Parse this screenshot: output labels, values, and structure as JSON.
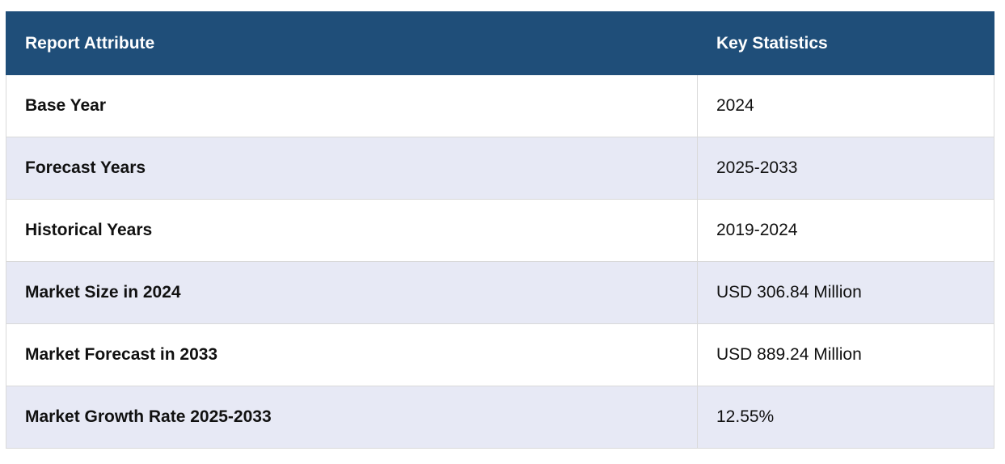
{
  "table": {
    "headers": [
      "Report Attribute",
      "Key Statistics"
    ],
    "rows": [
      {
        "attribute": "Base Year",
        "value": "2024"
      },
      {
        "attribute": "Forecast Years",
        "value": "2025-2033"
      },
      {
        "attribute": "Historical Years",
        "value": "2019-2024"
      },
      {
        "attribute": "Market Size in 2024",
        "value": "USD 306.84 Million"
      },
      {
        "attribute": "Market Forecast in 2033",
        "value": "USD 889.24 Million"
      },
      {
        "attribute": "Market Growth Rate 2025-2033",
        "value": "12.55%"
      }
    ]
  },
  "colors": {
    "header_bg": "#1f4e79",
    "header_text": "#ffffff",
    "row_alt_bg": "#e7e9f5",
    "row_bg": "#ffffff"
  }
}
